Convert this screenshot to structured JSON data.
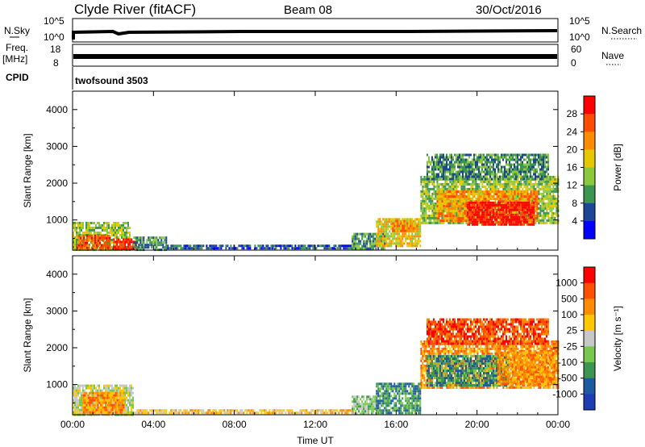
{
  "header": {
    "title": "Clyde River (fitACF)",
    "beam": "Beam 08",
    "date": "30/Oct/2016"
  },
  "mini_panels": {
    "nsky_label": "N.Sky",
    "nsky_ticks": [
      "10^5",
      "10^0"
    ],
    "nsearch_label": "N.Search",
    "nsearch_ticks": [
      "10^5",
      "10^0"
    ],
    "freq_label": "Freq.",
    "freq_unit": "[MHz]",
    "freq_ticks": [
      "18",
      "8"
    ],
    "nave_label": "Nave",
    "nave_ticks": [
      "60",
      "0"
    ],
    "cpid_label": "CPID",
    "cpid_value": "twofsound 3503"
  },
  "chart_data": [
    {
      "type": "heatmap",
      "name": "power",
      "ylabel": "Slant Range [km]",
      "xlabel": "",
      "xlim": [
        0,
        24
      ],
      "ylim": [
        180,
        4500
      ],
      "x_ticks": [
        "00:00",
        "04:00",
        "08:00",
        "12:00",
        "16:00",
        "20:00",
        "00:00"
      ],
      "y_ticks": [
        1000,
        2000,
        3000,
        4000
      ],
      "colorbar": {
        "label": "Power [dB]",
        "ticks": [
          "28",
          "24",
          "20",
          "16",
          "12",
          "8",
          "4"
        ],
        "colors": [
          "#ff0000",
          "#ff4c00",
          "#ff8c00",
          "#e6c800",
          "#8cc83c",
          "#3c9650",
          "#1e4696",
          "#0000ff"
        ]
      },
      "regions": [
        {
          "x0": 0.0,
          "x1": 2.8,
          "y0": 200,
          "y1": 950,
          "level": 3
        },
        {
          "x0": 0.2,
          "x1": 1.8,
          "y0": 250,
          "y1": 600,
          "level": 6
        },
        {
          "x0": 2.0,
          "x1": 3.2,
          "y0": 200,
          "y1": 500,
          "level": 7
        },
        {
          "x0": 3.0,
          "x1": 4.6,
          "y0": 200,
          "y1": 550,
          "level": 2
        },
        {
          "x0": 4.6,
          "x1": 14.0,
          "y0": 200,
          "y1": 330,
          "level": 1
        },
        {
          "x0": 13.8,
          "x1": 15.4,
          "y0": 200,
          "y1": 650,
          "level": 2
        },
        {
          "x0": 15.0,
          "x1": 17.2,
          "y0": 300,
          "y1": 1050,
          "level": 4
        },
        {
          "x0": 15.8,
          "x1": 17.0,
          "y0": 700,
          "y1": 1000,
          "level": 5
        },
        {
          "x0": 17.2,
          "x1": 24.0,
          "y0": 900,
          "y1": 2200,
          "level": 3
        },
        {
          "x0": 18.0,
          "x1": 23.0,
          "y0": 1000,
          "y1": 1800,
          "level": 5
        },
        {
          "x0": 19.5,
          "x1": 22.8,
          "y0": 900,
          "y1": 1500,
          "level": 7
        },
        {
          "x0": 17.5,
          "x1": 23.5,
          "y0": 2100,
          "y1": 2800,
          "level": 2
        }
      ]
    },
    {
      "type": "heatmap",
      "name": "velocity",
      "ylabel": "Slant Range [km]",
      "xlabel": "Time UT",
      "xlim": [
        0,
        24
      ],
      "ylim": [
        180,
        4500
      ],
      "x_ticks": [
        "00:00",
        "04:00",
        "08:00",
        "12:00",
        "16:00",
        "20:00",
        "00:00"
      ],
      "y_ticks": [
        1000,
        2000,
        3000,
        4000
      ],
      "colorbar": {
        "label": "Velocity [m s⁻¹]",
        "ticks": [
          "1000",
          "500",
          "100",
          "25",
          "-25",
          "-100",
          "-500",
          "-1000"
        ],
        "colors": [
          "#ff0000",
          "#ff5000",
          "#ff8c00",
          "#ffc800",
          "#c8c8c8",
          "#78c850",
          "#3c9650",
          "#1e5aa0",
          "#1e3cb4"
        ]
      },
      "regions": [
        {
          "x0": 0.0,
          "x1": 3.0,
          "y0": 200,
          "y1": 1000,
          "level": 4
        },
        {
          "x0": 0.5,
          "x1": 2.5,
          "y0": 250,
          "y1": 800,
          "level": 6
        },
        {
          "x0": 3.0,
          "x1": 14.0,
          "y0": 200,
          "y1": 330,
          "level": 5
        },
        {
          "x0": 13.8,
          "x1": 15.0,
          "y0": 200,
          "y1": 700,
          "level": 3
        },
        {
          "x0": 15.0,
          "x1": 17.2,
          "y0": 250,
          "y1": 1050,
          "level": 2
        },
        {
          "x0": 17.2,
          "x1": 24.0,
          "y0": 900,
          "y1": 2200,
          "level": 6
        },
        {
          "x0": 17.5,
          "x1": 21.5,
          "y0": 1000,
          "y1": 1800,
          "level": 2
        },
        {
          "x0": 21.0,
          "x1": 23.8,
          "y0": 1000,
          "y1": 1900,
          "level": 6
        },
        {
          "x0": 17.5,
          "x1": 23.5,
          "y0": 2100,
          "y1": 2800,
          "level": 7
        }
      ]
    }
  ]
}
